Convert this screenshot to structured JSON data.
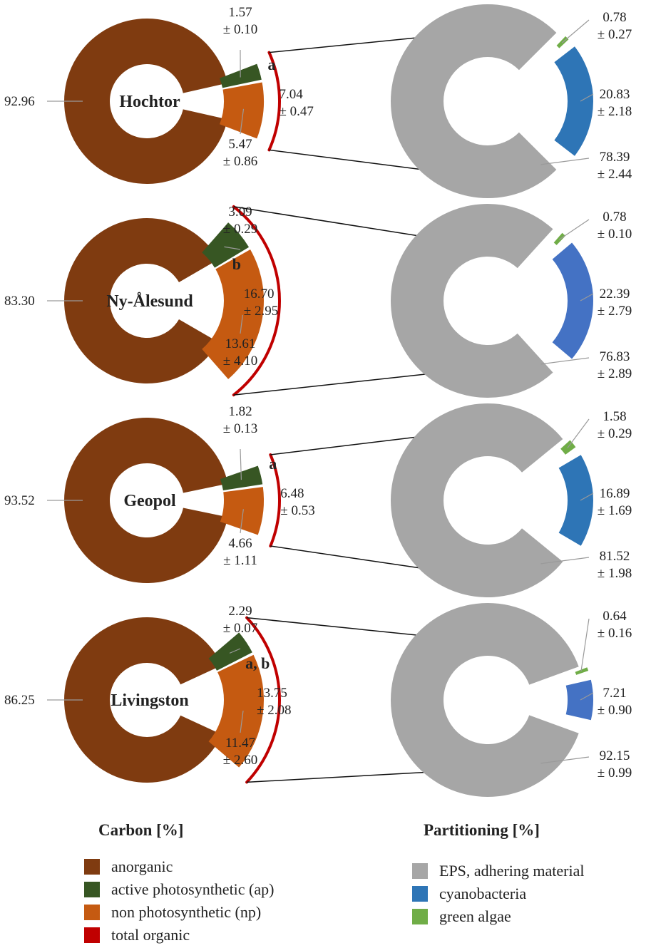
{
  "chart_data": {
    "type": "pie",
    "panels": [
      {
        "site": "Hochtor",
        "carbon": {
          "anorganic": {
            "value": "92.96"
          },
          "ap": {
            "value": "1.57",
            "sd": "± 0.10"
          },
          "np": {
            "value": "5.47",
            "sd": "± 0.86"
          },
          "total_organic": {
            "value": "7.04",
            "sd": "± 0.47"
          },
          "letter": "a"
        },
        "partitioning": {
          "green_algae": {
            "value": "0.78",
            "sd": "± 0.27"
          },
          "cyanobacteria": {
            "value": "20.83",
            "sd": "± 2.18"
          },
          "eps": {
            "value": "78.39",
            "sd": "± 2.44"
          }
        }
      },
      {
        "site": "Ny-Ålesund",
        "carbon": {
          "anorganic": {
            "value": "83.30"
          },
          "ap": {
            "value": "3.09",
            "sd": "± 0.29"
          },
          "np": {
            "value": "13.61",
            "sd": "± 4.10"
          },
          "total_organic": {
            "value": "16.70",
            "sd": "± 2.95"
          },
          "letter": "b"
        },
        "partitioning": {
          "green_algae": {
            "value": "0.78",
            "sd": "± 0.10"
          },
          "cyanobacteria": {
            "value": "22.39",
            "sd": "± 2.79"
          },
          "eps": {
            "value": "76.83",
            "sd": "± 2.89"
          }
        }
      },
      {
        "site": "Geopol",
        "carbon": {
          "anorganic": {
            "value": "93.52"
          },
          "ap": {
            "value": "1.82",
            "sd": "± 0.13"
          },
          "np": {
            "value": "4.66",
            "sd": "± 1.11"
          },
          "total_organic": {
            "value": "6.48",
            "sd": "± 0.53"
          },
          "letter": "a"
        },
        "partitioning": {
          "green_algae": {
            "value": "1.58",
            "sd": "± 0.29"
          },
          "cyanobacteria": {
            "value": "16.89",
            "sd": "± 1.69"
          },
          "eps": {
            "value": "81.52",
            "sd": "± 1.98"
          }
        }
      },
      {
        "site": "Livingston",
        "carbon": {
          "anorganic": {
            "value": "86.25"
          },
          "ap": {
            "value": "2.29",
            "sd": "± 0.07"
          },
          "np": {
            "value": "11.47",
            "sd": "± 2.60"
          },
          "total_organic": {
            "value": "13.75",
            "sd": "± 2.08"
          },
          "letter": "a, b"
        },
        "partitioning": {
          "green_algae": {
            "value": "0.64",
            "sd": "± 0.16"
          },
          "cyanobacteria": {
            "value": "7.21",
            "sd": "± 0.90"
          },
          "eps": {
            "value": "92.15",
            "sd": "± 0.99"
          }
        }
      }
    ]
  },
  "legend": {
    "carbon": {
      "title": "Carbon [%]",
      "items": [
        {
          "label": "anorganic",
          "color": "#7f3b10"
        },
        {
          "label": "active photosynthetic (ap)",
          "color": "#375623"
        },
        {
          "label": "non photosynthetic (np)",
          "color": "#c55a11"
        },
        {
          "label": "total organic",
          "color": "#c00000"
        }
      ]
    },
    "partitioning": {
      "title": "Partitioning [%]",
      "items": [
        {
          "label": "EPS, adhering material",
          "color": "#a6a6a6"
        },
        {
          "label": "cyanobacteria",
          "color": "#2e75b6"
        },
        {
          "label": "green algae",
          "color": "#70ad47"
        }
      ]
    }
  },
  "colors": {
    "anorganic": "#7f3b10",
    "ap": "#375623",
    "np": "#c55a11",
    "total_organic": "#c00000",
    "eps": "#a6a6a6",
    "cyano": "#2e75b6",
    "cyano_alt": "#4472c4",
    "green": "#70ad47"
  }
}
